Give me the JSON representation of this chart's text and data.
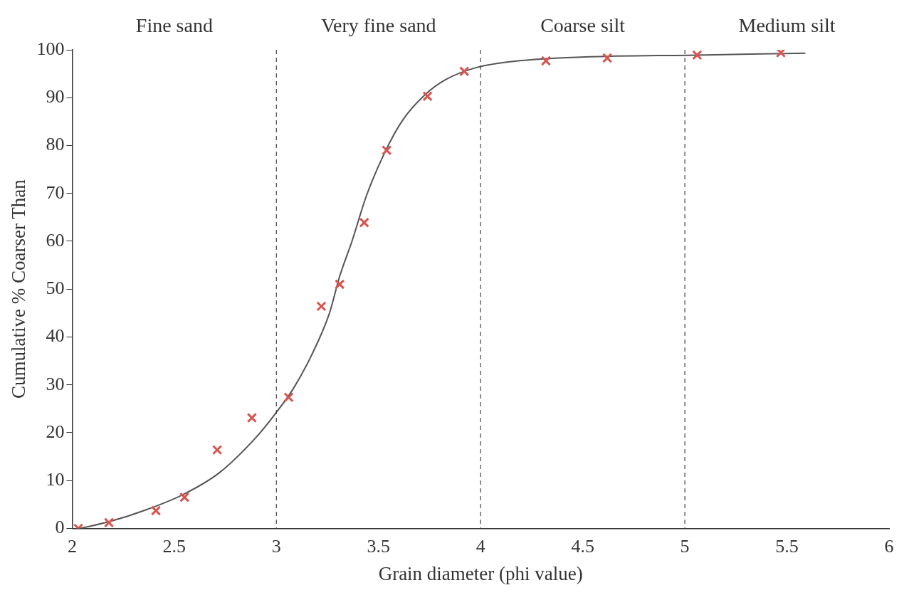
{
  "chart_data": {
    "type": "scatter",
    "xlabel": "Grain diameter (phi value)",
    "ylabel": "Cumulative % Coarser Than",
    "xlim": [
      2,
      6
    ],
    "xticks": [
      2,
      2.5,
      3,
      3.5,
      4,
      4.5,
      5,
      5.5,
      6
    ],
    "ylim": [
      0,
      100
    ],
    "yticks": [
      0,
      10,
      20,
      30,
      40,
      50,
      60,
      70,
      80,
      90,
      100
    ],
    "grid": false,
    "legend": false,
    "series": [
      {
        "type": "scatter",
        "color": "#d9534f",
        "marker": "cross",
        "x": [
          2.03,
          2.18,
          2.41,
          2.55,
          2.71,
          2.88,
          3.06,
          3.22,
          3.31,
          3.43,
          3.54,
          3.74,
          3.92,
          4.32,
          4.62,
          5.06,
          5.47
        ],
        "values": [
          0,
          1.2,
          3.7,
          6.5,
          16.4,
          23.1,
          27.4,
          46.4,
          51,
          63.9,
          79,
          90.3,
          95.5,
          97.7,
          98.3,
          98.9,
          99.4
        ]
      },
      {
        "type": "line",
        "color": "#555555",
        "marker": "none",
        "line_style": "solid",
        "x": [
          2.04,
          2.19,
          2.37,
          2.54,
          2.72,
          2.9,
          2.99,
          3.08,
          3.17,
          3.26,
          3.31,
          3.37,
          3.44,
          3.53,
          3.62,
          3.73,
          3.83,
          3.98,
          4.16,
          4.51,
          5.05,
          5.59
        ],
        "values": [
          0,
          1.5,
          4,
          7,
          11.6,
          19,
          23.7,
          29,
          36,
          45,
          52.7,
          60,
          69.4,
          78.5,
          85.4,
          90.7,
          93.8,
          96.3,
          97.6,
          98.5,
          98.9,
          99.3
        ]
      }
    ],
    "ref_lines": [
      {
        "axis": "x",
        "value": 3,
        "line_style": "dashed",
        "color": "#444444"
      },
      {
        "axis": "x",
        "value": 4,
        "line_style": "dashed",
        "color": "#444444"
      },
      {
        "axis": "x",
        "value": 5,
        "line_style": "dashed",
        "color": "#444444"
      }
    ],
    "annotations": [
      "Fine sand",
      "Very fine sand",
      "Coarse silt",
      "Medium silt"
    ]
  }
}
